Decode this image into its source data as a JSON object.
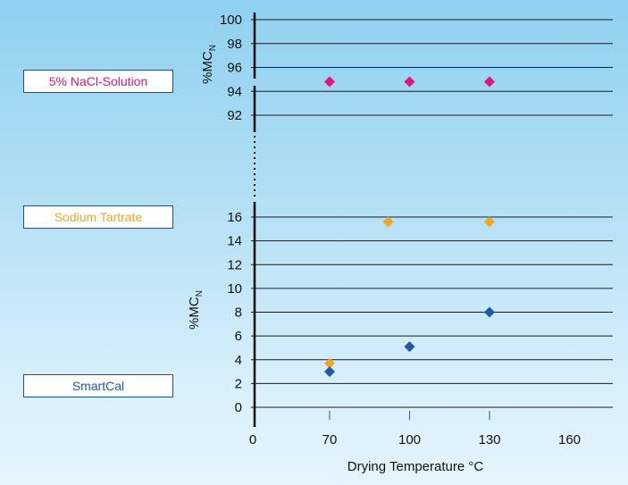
{
  "colors": {
    "nacl": "#e0157f",
    "tartrate": "#f5a623",
    "smartcal": "#1d5aa8",
    "box_border": "#1e4f9a"
  },
  "labels": {
    "nacl": "5% NaCl-Solution",
    "tartrate": "Sodium Tartrate",
    "smartcal": "SmartCal"
  },
  "chart_data": {
    "type": "scatter",
    "xlabel": "Drying Temperature °C",
    "ylabel_top": "%MC",
    "ylabel_top_sub": "N",
    "ylabel_bottom": "%MC",
    "ylabel_bottom_sub": "N",
    "x_ticks": [
      0,
      70,
      100,
      130,
      160
    ],
    "xlim": [
      0,
      175
    ],
    "top_panel": {
      "ylim": [
        90,
        100
      ],
      "y_ticks": [
        92,
        94,
        96,
        98,
        100
      ],
      "series": [
        {
          "color": "#e0157f",
          "points": [
            [
              70,
              94.8
            ],
            [
              100,
              94.8
            ],
            [
              130,
              94.8
            ]
          ]
        }
      ]
    },
    "bottom_panel": {
      "ylim": [
        0,
        17
      ],
      "y_ticks": [
        0,
        2,
        4,
        6,
        8,
        10,
        12,
        14,
        16
      ],
      "series": [
        {
          "color": "#f5a623",
          "points": [
            [
              70,
              3.7
            ],
            [
              92,
              15.6
            ],
            [
              130,
              15.6
            ]
          ]
        },
        {
          "color": "#1d5aa8",
          "points": [
            [
              70,
              3.0
            ],
            [
              100,
              5.1
            ],
            [
              130,
              8.0
            ]
          ]
        }
      ]
    }
  }
}
